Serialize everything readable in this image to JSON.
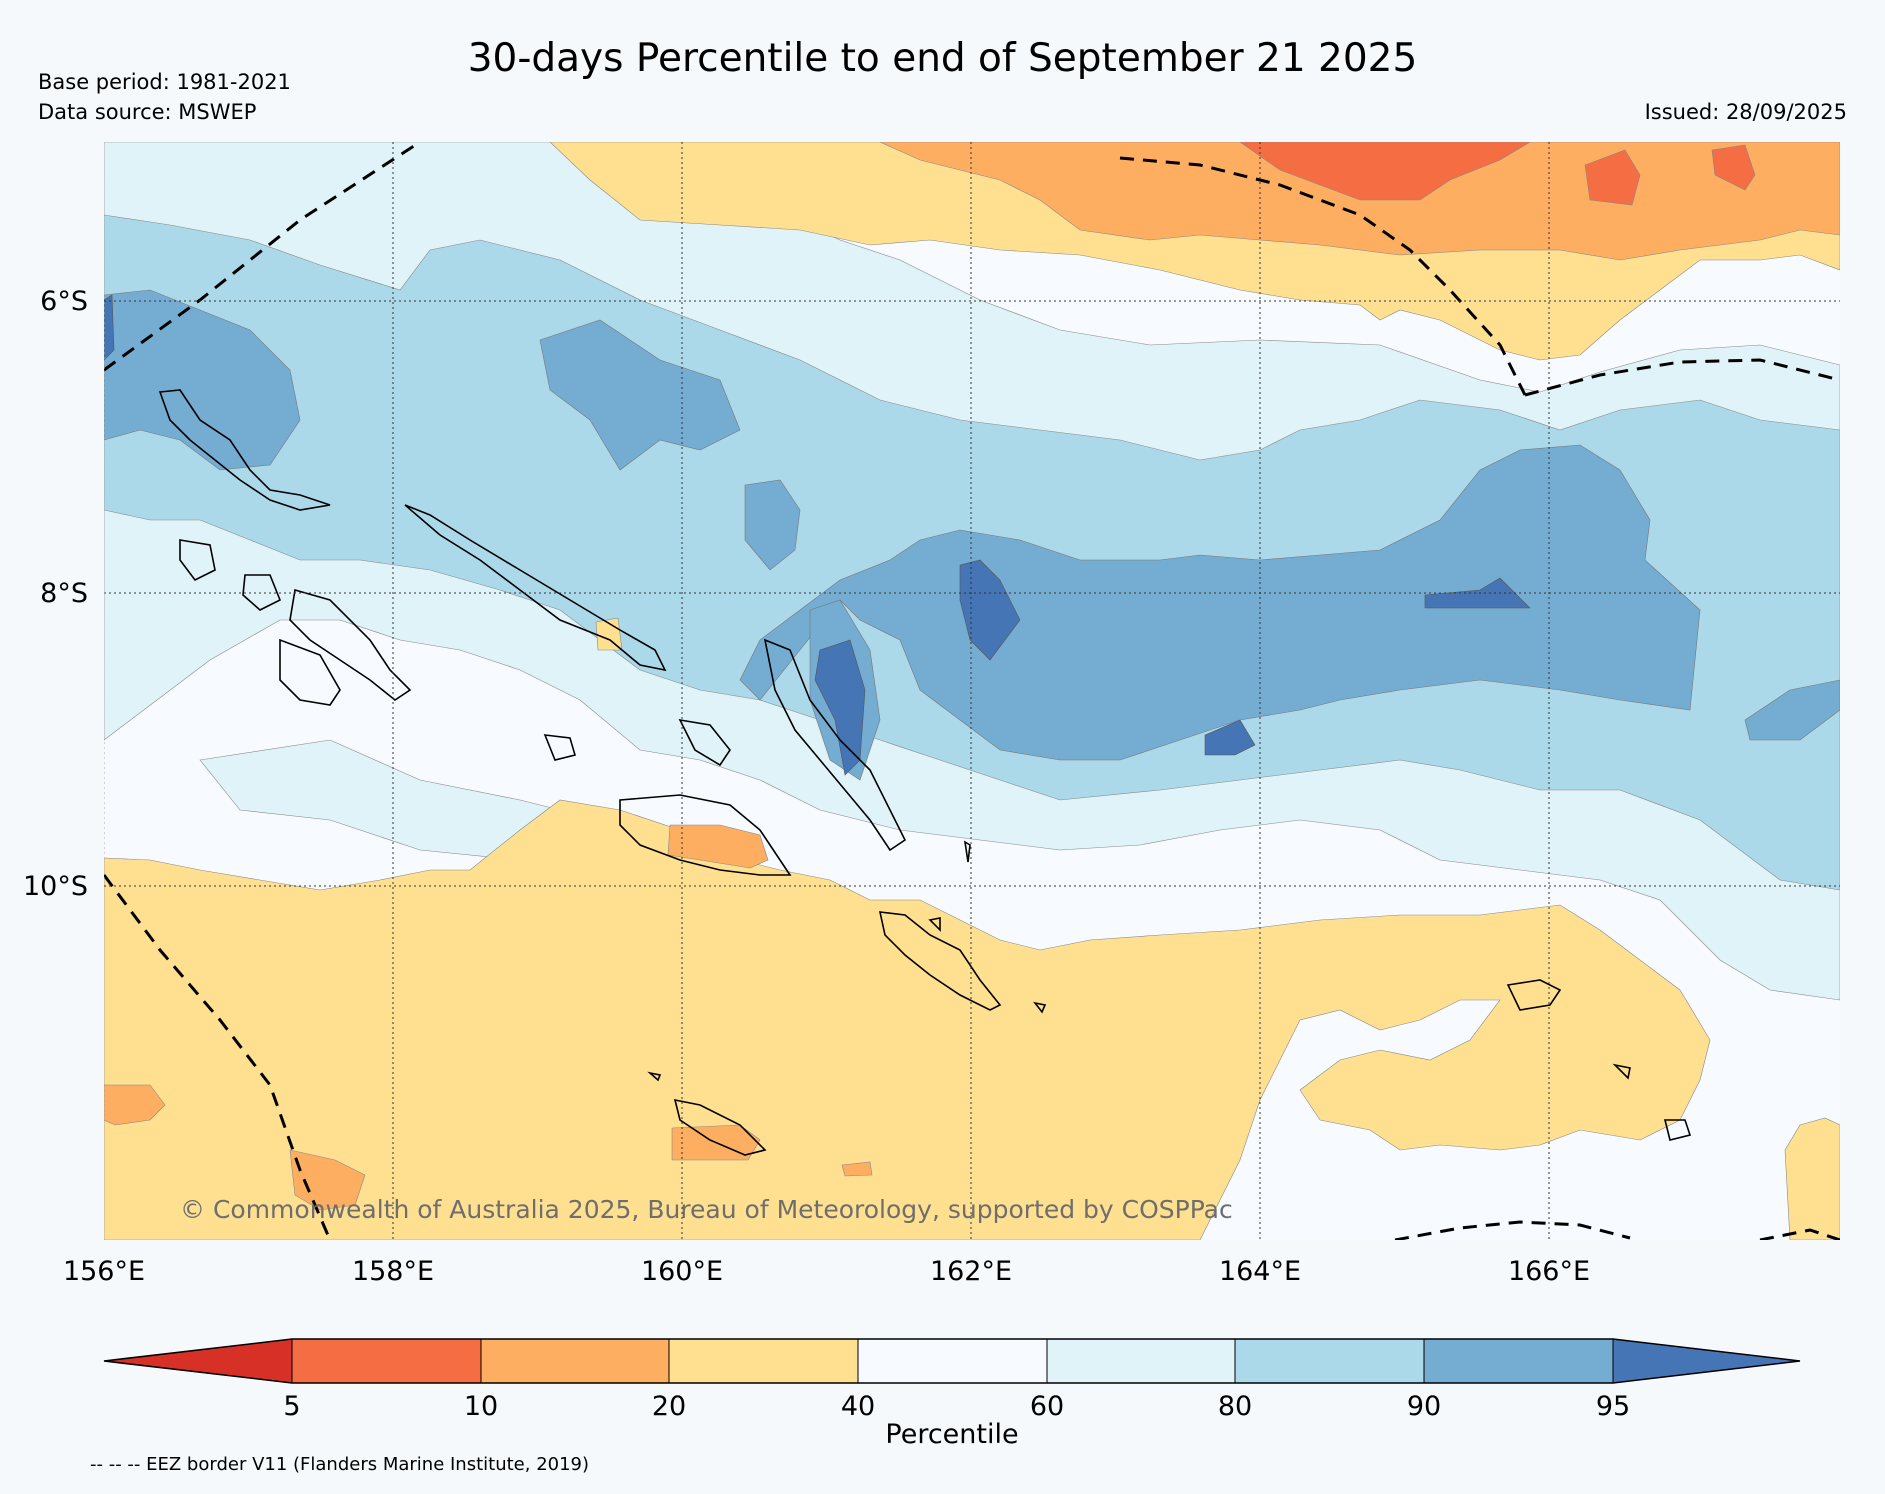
{
  "title": "30-days Percentile to end of September 21 2025",
  "base_period": "Base period: 1981-2021",
  "data_source": "Data source: MSWEP",
  "issued": "Issued: 28/09/2025",
  "copyright": "© Commonwealth of Australia 2025, Bureau of Meteorology, supported by COSPPac",
  "lat_labels": [
    "6°S",
    "8°S",
    "10°S"
  ],
  "lon_labels": [
    "156°E",
    "158°E",
    "160°E",
    "162°E",
    "164°E",
    "166°E"
  ],
  "colorbar": {
    "label": "Percentile",
    "ticks": [
      "5",
      "10",
      "20",
      "40",
      "60",
      "80",
      "90",
      "95"
    ],
    "colors": [
      "#d73027",
      "#f46d43",
      "#fdae61",
      "#fee090",
      "#f7fbff",
      "#e0f3f8",
      "#abd9e9",
      "#74add1",
      "#4575b4"
    ]
  },
  "legend_note": "-- -- -- EEZ border V11 (Flanders Marine Institute, 2019)"
}
